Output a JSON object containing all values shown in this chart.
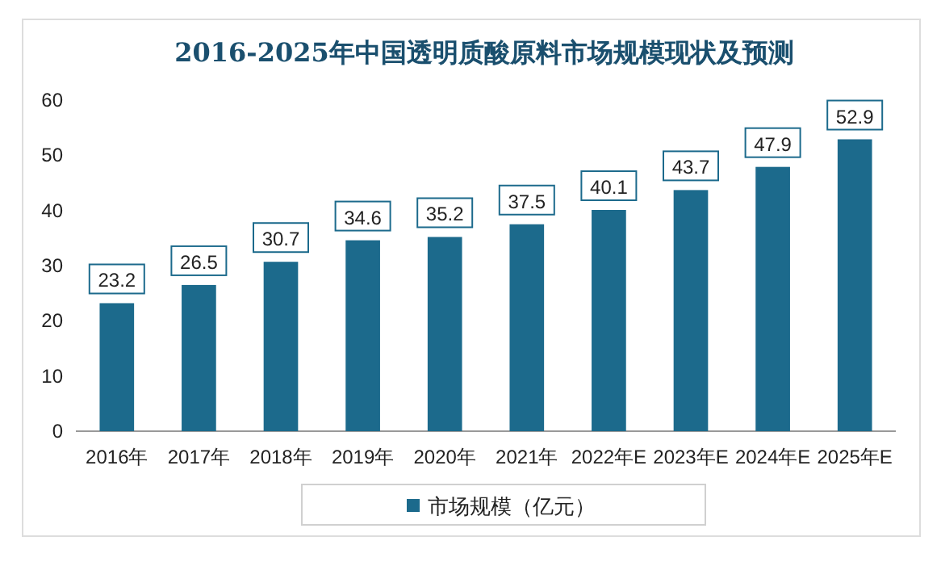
{
  "chart_data": {
    "type": "bar",
    "title": "2016-2025年中国透明质酸原料市场规模现状及预测",
    "categories": [
      "2016年",
      "2017年",
      "2018年",
      "2019年",
      "2020年",
      "2021年",
      "2022年E",
      "2023年E",
      "2024年E",
      "2025年E"
    ],
    "series": [
      {
        "name": "市场规模（亿元）",
        "color": "#1c6a8c",
        "values": [
          23.2,
          26.5,
          30.7,
          34.6,
          35.2,
          37.5,
          40.1,
          43.7,
          47.9,
          52.9
        ]
      }
    ],
    "ylim": [
      0,
      60
    ],
    "yticks": [
      0,
      10,
      20,
      30,
      40,
      50,
      60
    ],
    "data_labels": true,
    "legend": "bottom"
  }
}
